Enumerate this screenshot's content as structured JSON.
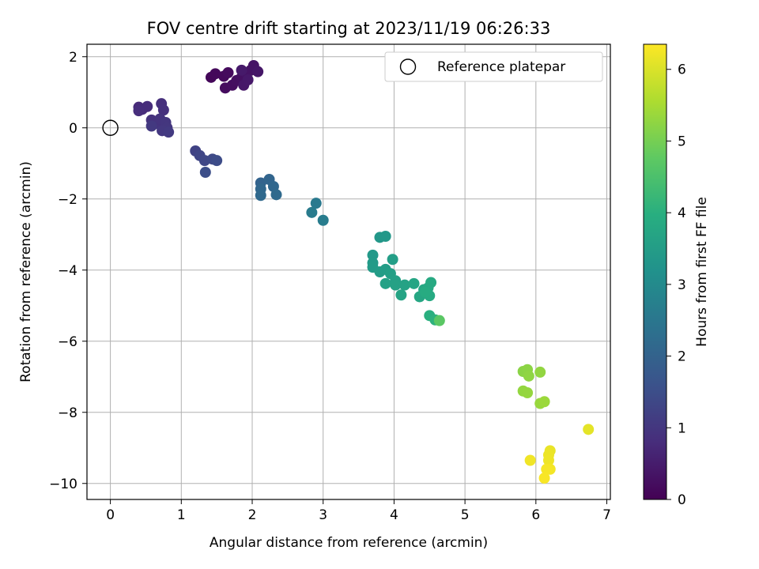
{
  "chart_data": {
    "type": "scatter",
    "title": "FOV centre drift starting at 2023/11/19 06:26:33",
    "xlabel": "Angular distance from reference (arcmin)",
    "ylabel": "Rotation from reference (arcmin)",
    "xlim": [
      -0.33,
      7.05
    ],
    "ylim": [
      -10.45,
      2.35
    ],
    "xticks": [
      0,
      1,
      2,
      3,
      4,
      5,
      6,
      7
    ],
    "yticks": [
      -10,
      -8,
      -6,
      -4,
      -2,
      0,
      2
    ],
    "grid": true,
    "legend": {
      "placement": "top-right",
      "entries": [
        "Reference platepar"
      ]
    },
    "reference_point": {
      "x": 0,
      "y": 0,
      "label": "Reference platepar"
    },
    "colorbar": {
      "label": "Hours from first FF file",
      "colormap": "viridis",
      "range": [
        0,
        6.35
      ],
      "ticks": [
        0,
        1,
        2,
        3,
        4,
        5,
        6
      ]
    },
    "points": [
      {
        "x": 1.42,
        "y": 1.42,
        "c": 0.1
      },
      {
        "x": 1.48,
        "y": 1.52,
        "c": 0.12
      },
      {
        "x": 1.6,
        "y": 1.45,
        "c": 0.15
      },
      {
        "x": 1.66,
        "y": 1.55,
        "c": 0.18
      },
      {
        "x": 1.62,
        "y": 1.12,
        "c": 0.2
      },
      {
        "x": 1.72,
        "y": 1.2,
        "c": 0.22
      },
      {
        "x": 1.78,
        "y": 1.33,
        "c": 0.25
      },
      {
        "x": 1.85,
        "y": 1.42,
        "c": 0.27
      },
      {
        "x": 1.92,
        "y": 1.52,
        "c": 0.3
      },
      {
        "x": 1.98,
        "y": 1.62,
        "c": 0.32
      },
      {
        "x": 2.02,
        "y": 1.75,
        "c": 0.35
      },
      {
        "x": 2.08,
        "y": 1.58,
        "c": 0.38
      },
      {
        "x": 1.88,
        "y": 1.2,
        "c": 0.4
      },
      {
        "x": 1.94,
        "y": 1.35,
        "c": 0.42
      },
      {
        "x": 1.85,
        "y": 1.62,
        "c": 0.45
      },
      {
        "x": 0.4,
        "y": 0.58,
        "c": 0.75
      },
      {
        "x": 0.45,
        "y": 0.52,
        "c": 0.78
      },
      {
        "x": 0.52,
        "y": 0.6,
        "c": 0.8
      },
      {
        "x": 0.4,
        "y": 0.48,
        "c": 0.82
      },
      {
        "x": 0.72,
        "y": 0.68,
        "c": 0.85
      },
      {
        "x": 0.75,
        "y": 0.5,
        "c": 0.88
      },
      {
        "x": 0.58,
        "y": 0.22,
        "c": 0.9
      },
      {
        "x": 0.65,
        "y": 0.12,
        "c": 0.92
      },
      {
        "x": 0.7,
        "y": 0.25,
        "c": 0.95
      },
      {
        "x": 0.78,
        "y": 0.15,
        "c": 0.98
      },
      {
        "x": 0.8,
        "y": 0.0,
        "c": 1.0
      },
      {
        "x": 0.73,
        "y": -0.08,
        "c": 1.02
      },
      {
        "x": 0.58,
        "y": 0.05,
        "c": 1.05
      },
      {
        "x": 0.82,
        "y": -0.12,
        "c": 1.08
      },
      {
        "x": 1.2,
        "y": -0.65,
        "c": 1.25
      },
      {
        "x": 1.26,
        "y": -0.78,
        "c": 1.3
      },
      {
        "x": 1.33,
        "y": -0.92,
        "c": 1.35
      },
      {
        "x": 1.44,
        "y": -0.88,
        "c": 1.4
      },
      {
        "x": 1.5,
        "y": -0.92,
        "c": 1.45
      },
      {
        "x": 1.34,
        "y": -1.25,
        "c": 1.5
      },
      {
        "x": 2.12,
        "y": -1.55,
        "c": 2.0
      },
      {
        "x": 2.24,
        "y": -1.45,
        "c": 2.05
      },
      {
        "x": 2.3,
        "y": -1.65,
        "c": 2.1
      },
      {
        "x": 2.12,
        "y": -1.72,
        "c": 2.12
      },
      {
        "x": 2.12,
        "y": -1.9,
        "c": 2.15
      },
      {
        "x": 2.34,
        "y": -1.88,
        "c": 2.18
      },
      {
        "x": 2.9,
        "y": -2.12,
        "c": 2.55
      },
      {
        "x": 2.84,
        "y": -2.38,
        "c": 2.6
      },
      {
        "x": 3.0,
        "y": -2.6,
        "c": 2.65
      },
      {
        "x": 3.8,
        "y": -3.08,
        "c": 3.35
      },
      {
        "x": 3.88,
        "y": -3.05,
        "c": 3.38
      },
      {
        "x": 3.7,
        "y": -3.58,
        "c": 3.4
      },
      {
        "x": 3.7,
        "y": -3.8,
        "c": 3.42
      },
      {
        "x": 3.7,
        "y": -3.92,
        "c": 3.45
      },
      {
        "x": 3.8,
        "y": -4.05,
        "c": 3.48
      },
      {
        "x": 3.88,
        "y": -3.98,
        "c": 3.5
      },
      {
        "x": 3.98,
        "y": -3.7,
        "c": 3.52
      },
      {
        "x": 3.95,
        "y": -4.1,
        "c": 3.55
      },
      {
        "x": 4.02,
        "y": -4.3,
        "c": 3.58
      },
      {
        "x": 3.88,
        "y": -4.38,
        "c": 3.6
      },
      {
        "x": 4.02,
        "y": -4.42,
        "c": 3.62
      },
      {
        "x": 4.15,
        "y": -4.42,
        "c": 3.65
      },
      {
        "x": 4.1,
        "y": -4.7,
        "c": 3.68
      },
      {
        "x": 4.28,
        "y": -4.38,
        "c": 3.72
      },
      {
        "x": 4.36,
        "y": -4.75,
        "c": 3.75
      },
      {
        "x": 4.42,
        "y": -4.55,
        "c": 3.78
      },
      {
        "x": 4.48,
        "y": -4.5,
        "c": 3.8
      },
      {
        "x": 4.52,
        "y": -4.35,
        "c": 3.82
      },
      {
        "x": 4.5,
        "y": -4.72,
        "c": 3.85
      },
      {
        "x": 4.44,
        "y": -4.62,
        "c": 3.88
      },
      {
        "x": 4.5,
        "y": -5.28,
        "c": 4.0
      },
      {
        "x": 4.58,
        "y": -5.4,
        "c": 4.05
      },
      {
        "x": 4.64,
        "y": -5.42,
        "c": 4.7
      },
      {
        "x": 5.82,
        "y": -6.85,
        "c": 5.2
      },
      {
        "x": 5.88,
        "y": -6.8,
        "c": 5.22
      },
      {
        "x": 5.9,
        "y": -6.98,
        "c": 5.25
      },
      {
        "x": 6.06,
        "y": -6.87,
        "c": 5.28
      },
      {
        "x": 5.82,
        "y": -7.4,
        "c": 5.3
      },
      {
        "x": 5.88,
        "y": -7.45,
        "c": 5.32
      },
      {
        "x": 6.06,
        "y": -7.75,
        "c": 5.35
      },
      {
        "x": 6.12,
        "y": -7.7,
        "c": 5.38
      },
      {
        "x": 6.74,
        "y": -8.48,
        "c": 6.1
      },
      {
        "x": 6.2,
        "y": -9.08,
        "c": 6.15
      },
      {
        "x": 6.18,
        "y": -9.2,
        "c": 6.18
      },
      {
        "x": 6.18,
        "y": -9.35,
        "c": 6.2
      },
      {
        "x": 5.92,
        "y": -9.35,
        "c": 6.22
      },
      {
        "x": 6.2,
        "y": -9.6,
        "c": 6.25
      },
      {
        "x": 6.15,
        "y": -9.6,
        "c": 6.28
      },
      {
        "x": 6.12,
        "y": -9.85,
        "c": 6.3
      }
    ]
  }
}
